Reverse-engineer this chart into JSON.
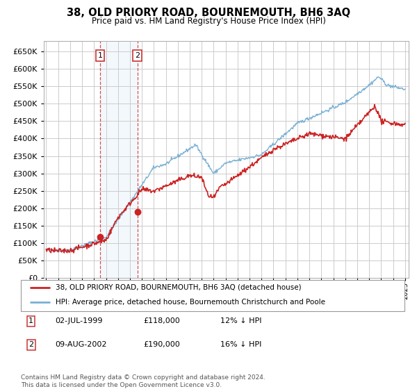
{
  "title": "38, OLD PRIORY ROAD, BOURNEMOUTH, BH6 3AQ",
  "subtitle": "Price paid vs. HM Land Registry's House Price Index (HPI)",
  "ylabel_ticks": [
    0,
    50000,
    100000,
    150000,
    200000,
    250000,
    300000,
    350000,
    400000,
    450000,
    500000,
    550000,
    600000,
    650000
  ],
  "ylim": [
    0,
    680000
  ],
  "xlim_start": 1994.8,
  "xlim_end": 2025.3,
  "transaction1": {
    "date_num": 1999.5,
    "price": 118000,
    "label": "1"
  },
  "transaction2": {
    "date_num": 2002.62,
    "price": 190000,
    "label": "2"
  },
  "hpi_color": "#7ab0d4",
  "price_color": "#cc2222",
  "shade_color": "#d8eaf7",
  "marker_box_color": "#cc3333",
  "grid_color": "#cccccc",
  "legend_line1": "38, OLD PRIORY ROAD, BOURNEMOUTH, BH6 3AQ (detached house)",
  "legend_line2": "HPI: Average price, detached house, Bournemouth Christchurch and Poole",
  "footnote": "Contains HM Land Registry data © Crown copyright and database right 2024.\nThis data is licensed under the Open Government Licence v3.0.",
  "table_row1": [
    "1",
    "02-JUL-1999",
    "£118,000",
    "12% ↓ HPI"
  ],
  "table_row2": [
    "2",
    "09-AUG-2002",
    "£190,000",
    "16% ↓ HPI"
  ]
}
